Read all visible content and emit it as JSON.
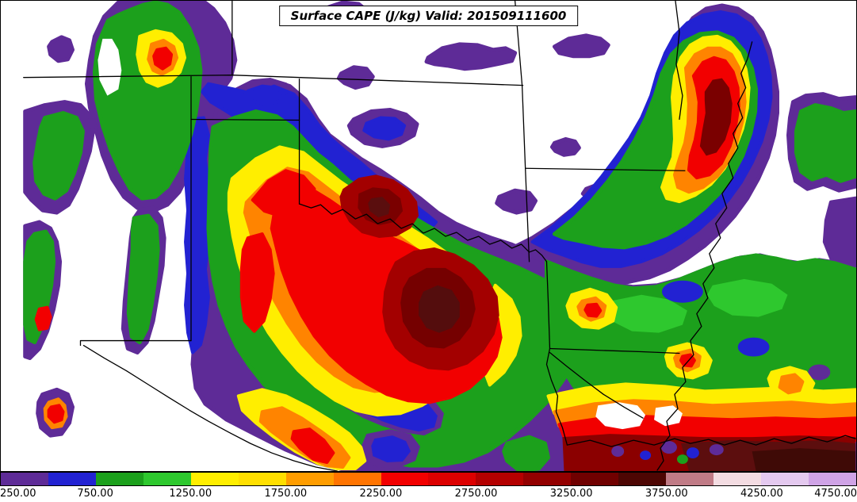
{
  "title": {
    "text": "Surface CAPE (J/kg) Valid: 201509111600"
  },
  "chart_data": {
    "type": "heatmap",
    "subtype": "filled-contour weather map (surface-based CAPE)",
    "title": "Surface CAPE (J/kg) Valid: 201509111600",
    "variable": "Surface CAPE",
    "units": "J/kg",
    "valid_time": "201509111600",
    "region": "South-central United States (eastern NM, CO, KS, OK, TX, MO, AR, LA, MS, Gulf coast)",
    "grid": "off",
    "legend_position": "bottom horizontal colorbar",
    "colorbar": {
      "orientation": "horizontal",
      "value_min": 250,
      "value_max": 4750,
      "contour_interval": 250,
      "tick_interval": 500,
      "tick_labels": [
        "250.00",
        "750.00",
        "1250.00",
        "1750.00",
        "2250.00",
        "2750.00",
        "3250.00",
        "3750.00",
        "4250.00",
        "4750.00"
      ],
      "segments": [
        {
          "from": 250,
          "to": 500,
          "color": "#5e2b97"
        },
        {
          "from": 500,
          "to": 750,
          "color": "#2222d2"
        },
        {
          "from": 750,
          "to": 1000,
          "color": "#1ca01c"
        },
        {
          "from": 1000,
          "to": 1250,
          "color": "#2ec82e"
        },
        {
          "from": 1250,
          "to": 1500,
          "color": "#ffee00"
        },
        {
          "from": 1500,
          "to": 1750,
          "color": "#ffdf00"
        },
        {
          "from": 1750,
          "to": 2000,
          "color": "#ff9d00"
        },
        {
          "from": 2000,
          "to": 2250,
          "color": "#ff7400"
        },
        {
          "from": 2250,
          "to": 2500,
          "color": "#f20000"
        },
        {
          "from": 2500,
          "to": 2750,
          "color": "#dc0000"
        },
        {
          "from": 2750,
          "to": 3000,
          "color": "#b40000"
        },
        {
          "from": 3000,
          "to": 3250,
          "color": "#930000"
        },
        {
          "from": 3250,
          "to": 3500,
          "color": "#700000"
        },
        {
          "from": 3500,
          "to": 3750,
          "color": "#4d0603"
        },
        {
          "from": 3750,
          "to": 4000,
          "color": "#c07b86"
        },
        {
          "from": 4000,
          "to": 4250,
          "color": "#f3dce2"
        },
        {
          "from": 4250,
          "to": 4500,
          "color": "#e4c9ef"
        },
        {
          "from": 4500,
          "to": 4750,
          "color": "#cfa3e6"
        }
      ]
    },
    "features": [
      {
        "area": "western North Texas / southwest Oklahoma near the Red River",
        "cape_jkg": "2750-3500",
        "note": "largest dark-red maximum"
      },
      {
        "area": "central Oklahoma",
        "cape_jkg": "2750-3250",
        "note": "secondary dark-red core"
      },
      {
        "area": "Texas Panhandle through central Texas",
        "cape_jkg": "1750-2750",
        "note": "broad orange/red area ringed by yellow, green, blue, purple"
      },
      {
        "area": "Mississippi River valley (northeast of domain)",
        "cape_jkg": "2250-3250",
        "note": "elongated N-S red maximum with concentric yellow/green/blue/purple rings"
      },
      {
        "area": "Gulf of Mexico coast (bottom right)",
        "cape_jkg": "2750-3750",
        "note": "dark maroon band along and off the coast"
      },
      {
        "area": "Arkansas / Louisiana / Mississippi",
        "cape_jkg": "750-1250",
        "note": "broad green region with isolated yellow-orange spots and blue patches"
      },
      {
        "area": "Kansas / Missouri (upper middle)",
        "cape_jkg": "< 250",
        "note": "white background with scattered 250-500 purple patches"
      },
      {
        "area": "eastern New Mexico (left edge)",
        "cape_jkg": "250-1000",
        "note": "narrow purple/green bands, mostly below 250"
      },
      {
        "area": "south-central Texas",
        "cape_jkg": "500-750",
        "note": "blue pocket surrounded by green/yellow"
      }
    ]
  },
  "map": {
    "background": "#ffffff",
    "frame_color": "#000000",
    "state_border_color": "#000000"
  }
}
